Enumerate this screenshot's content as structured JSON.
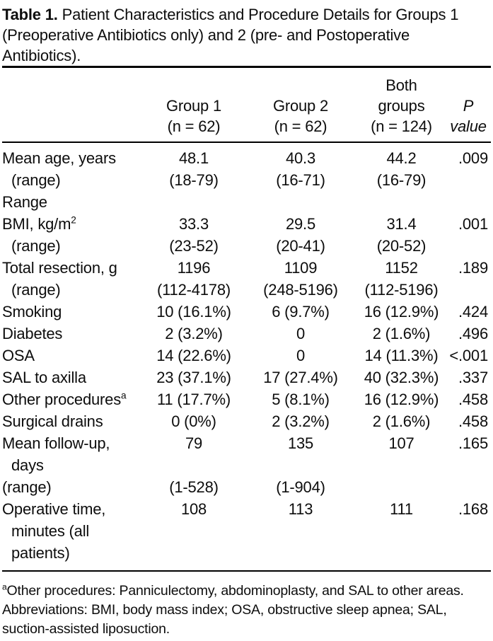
{
  "colors": {
    "text": "#0d0d0d",
    "background": "#ffffff",
    "rule": "#000000"
  },
  "title": {
    "caption_label": "Table 1.",
    "caption_text": "Patient Characteristics and Procedure Details for Groups 1 (Preoperative Antibiotics only) and 2 (pre- and Postoperative Antibiotics)."
  },
  "table": {
    "header": {
      "row_label": "",
      "group1": {
        "line1": "Group 1",
        "line2": "(n = 62)"
      },
      "group2": {
        "line1": "Group 2",
        "line2": "(n = 62)"
      },
      "both": {
        "line1": "Both",
        "line2": "groups",
        "line3": "(n = 124)"
      },
      "p": {
        "line1": "P",
        "line2": "value"
      }
    },
    "rows": [
      {
        "label": "Mean age, years",
        "sup": "",
        "indent": 0,
        "g1": "48.1",
        "g2": "40.3",
        "both": "44.2",
        "p": ".009"
      },
      {
        "label": "(range)",
        "sup": "",
        "indent": 1,
        "g1": "(18-79)",
        "g2": "(16-71)",
        "both": "(16-79)",
        "p": ""
      },
      {
        "label": "Range",
        "sup": "",
        "indent": 0,
        "g1": "",
        "g2": "",
        "both": "",
        "p": ""
      },
      {
        "label": "BMI, kg/m",
        "sup": "2",
        "indent": 0,
        "g1": "33.3",
        "g2": "29.5",
        "both": "31.4",
        "p": ".001"
      },
      {
        "label": "(range)",
        "sup": "",
        "indent": 1,
        "g1": "(23-52)",
        "g2": "(20-41)",
        "both": "(20-52)",
        "p": ""
      },
      {
        "label": "Total resection, g",
        "sup": "",
        "indent": 0,
        "g1": "1196",
        "g2": "1109",
        "both": "1152",
        "p": ".189"
      },
      {
        "label": "(range)",
        "sup": "",
        "indent": 1,
        "g1": "(112-4178)",
        "g2": "(248-5196)",
        "both": "(112-5196)",
        "p": ""
      },
      {
        "label": "Smoking",
        "sup": "",
        "indent": 0,
        "g1": "10 (16.1%)",
        "g2": "6 (9.7%)",
        "both": "16 (12.9%)",
        "p": ".424"
      },
      {
        "label": "Diabetes",
        "sup": "",
        "indent": 0,
        "g1": "2 (3.2%)",
        "g2": "0",
        "both": "2 (1.6%)",
        "p": ".496"
      },
      {
        "label": "OSA",
        "sup": "",
        "indent": 0,
        "g1": "14 (22.6%)",
        "g2": "0",
        "both": "14 (11.3%)",
        "p": "<.001"
      },
      {
        "label": "SAL to axilla",
        "sup": "",
        "indent": 0,
        "g1": "23 (37.1%)",
        "g2": "17 (27.4%)",
        "both": "40 (32.3%)",
        "p": ".337"
      },
      {
        "label": "Other procedures",
        "sup": "a",
        "indent": 0,
        "g1": "11 (17.7%)",
        "g2": "5 (8.1%)",
        "both": "16 (12.9%)",
        "p": ".458"
      },
      {
        "label": "Surgical drains",
        "sup": "",
        "indent": 0,
        "g1": "0 (0%)",
        "g2": "2 (3.2%)",
        "both": "2 (1.6%)",
        "p": ".458"
      },
      {
        "label": "Mean follow-up,",
        "sup": "",
        "indent": 0,
        "g1": "79",
        "g2": "135",
        "both": "107",
        "p": ".165"
      },
      {
        "label": "days",
        "sup": "",
        "indent": 1,
        "g1": "",
        "g2": "",
        "both": "",
        "p": ""
      },
      {
        "label": "(range)",
        "sup": "",
        "indent": 0,
        "g1": "(1-528)",
        "g2": "(1-904)",
        "both": "",
        "p": ""
      },
      {
        "label": "Operative time,",
        "sup": "",
        "indent": 0,
        "g1": "108",
        "g2": "113",
        "both": "111",
        "p": ".168"
      },
      {
        "label": "minutes (all",
        "sup": "",
        "indent": 1,
        "g1": "",
        "g2": "",
        "both": "",
        "p": ""
      },
      {
        "label": "patients)",
        "sup": "",
        "indent": 1,
        "g1": "",
        "g2": "",
        "both": "",
        "p": ""
      }
    ]
  },
  "footnotes": {
    "sup": "a",
    "line1": "Other procedures: Panniculectomy, abdominoplasty, and SAL to other areas.",
    "line2": "Abbreviations: BMI, body mass index; OSA, obstructive sleep apnea; SAL, suction-assisted liposuction."
  }
}
